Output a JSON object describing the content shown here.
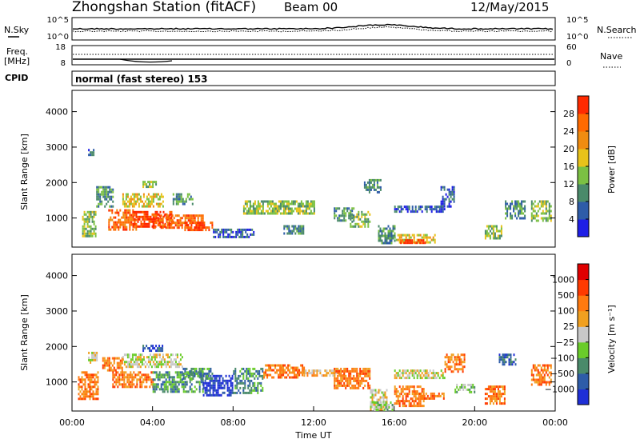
{
  "header": {
    "title": "Zhongshan Station (fitACF)",
    "beam": "Beam 00",
    "date": "12/May/2015"
  },
  "status_panels": {
    "nsky_label": "N.Sky",
    "nsearch_label": "N.Search",
    "freq_label_1": "Freq.",
    "freq_label_2": "[MHz]",
    "nave_label": "Nave",
    "cpid_label": "CPID",
    "cpid_text": "normal (fast stereo) 153",
    "noise_ticks_left": [
      "10^5",
      "10^0"
    ],
    "noise_ticks_right": [
      "10^5",
      "10^0"
    ],
    "freq_ticks": [
      "18",
      "8"
    ],
    "nave_ticks": [
      "60",
      "0"
    ]
  },
  "chart_data": [
    {
      "type": "heatmap",
      "name": "power",
      "ylabel": "Slant Range [km]",
      "xlabel": "",
      "ylim": [
        180,
        4600
      ],
      "xlim": [
        0,
        24
      ],
      "yticks": [
        "1000",
        "2000",
        "3000",
        "4000"
      ],
      "ytick_values": [
        1000,
        2000,
        3000,
        4000
      ],
      "colorbar": {
        "label": "Power [dB]",
        "ticks": [
          "4",
          "8",
          "12",
          "16",
          "20",
          "24",
          "28"
        ],
        "range": [
          0,
          32
        ],
        "colors": [
          "#1f1fe6",
          "#2e5ca8",
          "#4a8a6a",
          "#7bc043",
          "#e8c21a",
          "#f08c10",
          "#ff6a00",
          "#ff2a00"
        ]
      },
      "regions": [
        {
          "t": [
            0.5,
            1.2
          ],
          "r": [
            500,
            1200
          ],
          "level": 3
        },
        {
          "t": [
            0.8,
            1.1
          ],
          "r": [
            2700,
            2950
          ],
          "level": 1
        },
        {
          "t": [
            1.2,
            2.0
          ],
          "r": [
            1300,
            1900
          ],
          "level": 2
        },
        {
          "t": [
            1.8,
            3.2
          ],
          "r": [
            700,
            1250
          ],
          "level": 6
        },
        {
          "t": [
            2.5,
            4.5
          ],
          "r": [
            1300,
            1700
          ],
          "level": 4
        },
        {
          "t": [
            3.0,
            5.0
          ],
          "r": [
            750,
            1200
          ],
          "level": 7
        },
        {
          "t": [
            4.0,
            6.5
          ],
          "r": [
            700,
            1100
          ],
          "level": 6
        },
        {
          "t": [
            5.5,
            7.0
          ],
          "r": [
            650,
            900
          ],
          "level": 7
        },
        {
          "t": [
            3.5,
            4.2
          ],
          "r": [
            1850,
            2050
          ],
          "level": 3
        },
        {
          "t": [
            5.0,
            6.0
          ],
          "r": [
            1400,
            1700
          ],
          "level": 2
        },
        {
          "t": [
            7.0,
            9.0
          ],
          "r": [
            450,
            700
          ],
          "level": 1
        },
        {
          "t": [
            8.5,
            12.0
          ],
          "r": [
            1150,
            1500
          ],
          "level": 3
        },
        {
          "t": [
            10.5,
            11.5
          ],
          "r": [
            550,
            800
          ],
          "level": 2
        },
        {
          "t": [
            13.0,
            14.0
          ],
          "r": [
            900,
            1300
          ],
          "level": 2
        },
        {
          "t": [
            13.8,
            14.8
          ],
          "r": [
            750,
            1200
          ],
          "level": 3
        },
        {
          "t": [
            14.5,
            15.3
          ],
          "r": [
            1700,
            2100
          ],
          "level": 2
        },
        {
          "t": [
            15.2,
            16.0
          ],
          "r": [
            300,
            800
          ],
          "level": 2
        },
        {
          "t": [
            16.0,
            18.0
          ],
          "r": [
            300,
            550
          ],
          "level": 4
        },
        {
          "t": [
            16.3,
            17.5
          ],
          "r": [
            280,
            400
          ],
          "level": 7
        },
        {
          "t": [
            16.0,
            18.5
          ],
          "r": [
            1150,
            1350
          ],
          "level": 1
        },
        {
          "t": [
            18.3,
            19.0
          ],
          "r": [
            1300,
            1900
          ],
          "level": 1
        },
        {
          "t": [
            20.5,
            21.3
          ],
          "r": [
            400,
            800
          ],
          "level": 3
        },
        {
          "t": [
            21.5,
            22.5
          ],
          "r": [
            1000,
            1500
          ],
          "level": 2
        },
        {
          "t": [
            22.8,
            23.8
          ],
          "r": [
            900,
            1500
          ],
          "level": 3
        }
      ]
    },
    {
      "type": "heatmap",
      "name": "velocity",
      "ylabel": "Slant Range [km]",
      "xlabel": "Time UT",
      "ylim": [
        180,
        4600
      ],
      "xlim": [
        0,
        24
      ],
      "yticks": [
        "1000",
        "2000",
        "3000",
        "4000"
      ],
      "ytick_values": [
        1000,
        2000,
        3000,
        4000
      ],
      "xticks": [
        "00:00",
        "04:00",
        "08:00",
        "12:00",
        "16:00",
        "20:00",
        "00:00"
      ],
      "xtick_values": [
        0,
        4,
        8,
        12,
        16,
        20,
        24
      ],
      "colorbar": {
        "label": "Velocity [m s⁻¹]",
        "ticks": [
          "1000",
          "500",
          "100",
          "25",
          "−25",
          "−100",
          "−500",
          "−1000"
        ],
        "colors": [
          "#1f2fd6",
          "#2e5ca8",
          "#4a8a6a",
          "#6acc2a",
          "#c8c8c8",
          "#f0a020",
          "#ff7a10",
          "#ff3a00",
          "#e00000"
        ]
      },
      "regions": [
        {
          "t": [
            0.3,
            1.3
          ],
          "r": [
            500,
            1300
          ],
          "level": 6
        },
        {
          "t": [
            0.8,
            1.2
          ],
          "r": [
            1550,
            1850
          ],
          "level": 4
        },
        {
          "t": [
            1.5,
            2.5
          ],
          "r": [
            1300,
            1700
          ],
          "level": 6
        },
        {
          "t": [
            2.0,
            4.0
          ],
          "r": [
            850,
            1300
          ],
          "level": 6
        },
        {
          "t": [
            2.5,
            5.5
          ],
          "r": [
            1450,
            1800
          ],
          "level": 4
        },
        {
          "t": [
            3.5,
            4.5
          ],
          "r": [
            1900,
            2050
          ],
          "level": 1
        },
        {
          "t": [
            4.0,
            6.5
          ],
          "r": [
            700,
            1300
          ],
          "level": 2
        },
        {
          "t": [
            6.5,
            8.0
          ],
          "r": [
            650,
            1200
          ],
          "level": 0
        },
        {
          "t": [
            5.5,
            7.0
          ],
          "r": [
            1100,
            1400
          ],
          "level": 2
        },
        {
          "t": [
            8.0,
            9.5
          ],
          "r": [
            700,
            1400
          ],
          "level": 2
        },
        {
          "t": [
            9.5,
            11.5
          ],
          "r": [
            1100,
            1500
          ],
          "level": 6
        },
        {
          "t": [
            11.5,
            13.5
          ],
          "r": [
            1150,
            1350
          ],
          "level": 5
        },
        {
          "t": [
            13.0,
            14.8
          ],
          "r": [
            800,
            1400
          ],
          "level": 6
        },
        {
          "t": [
            14.8,
            15.6
          ],
          "r": [
            200,
            800
          ],
          "level": 4
        },
        {
          "t": [
            15.0,
            16.0
          ],
          "r": [
            200,
            450
          ],
          "level": 3
        },
        {
          "t": [
            16.0,
            17.5
          ],
          "r": [
            300,
            900
          ],
          "level": 6
        },
        {
          "t": [
            16.0,
            18.5
          ],
          "r": [
            1100,
            1350
          ],
          "level": 4
        },
        {
          "t": [
            17.0,
            18.5
          ],
          "r": [
            500,
            700
          ],
          "level": 6
        },
        {
          "t": [
            18.5,
            19.5
          ],
          "r": [
            1300,
            1800
          ],
          "level": 6
        },
        {
          "t": [
            19.0,
            20.0
          ],
          "r": [
            700,
            950
          ],
          "level": 3
        },
        {
          "t": [
            20.5,
            21.5
          ],
          "r": [
            400,
            900
          ],
          "level": 6
        },
        {
          "t": [
            22.8,
            23.8
          ],
          "r": [
            900,
            1500
          ],
          "level": 6
        },
        {
          "t": [
            21.2,
            22.0
          ],
          "r": [
            1500,
            1800
          ],
          "level": 1
        }
      ]
    }
  ]
}
